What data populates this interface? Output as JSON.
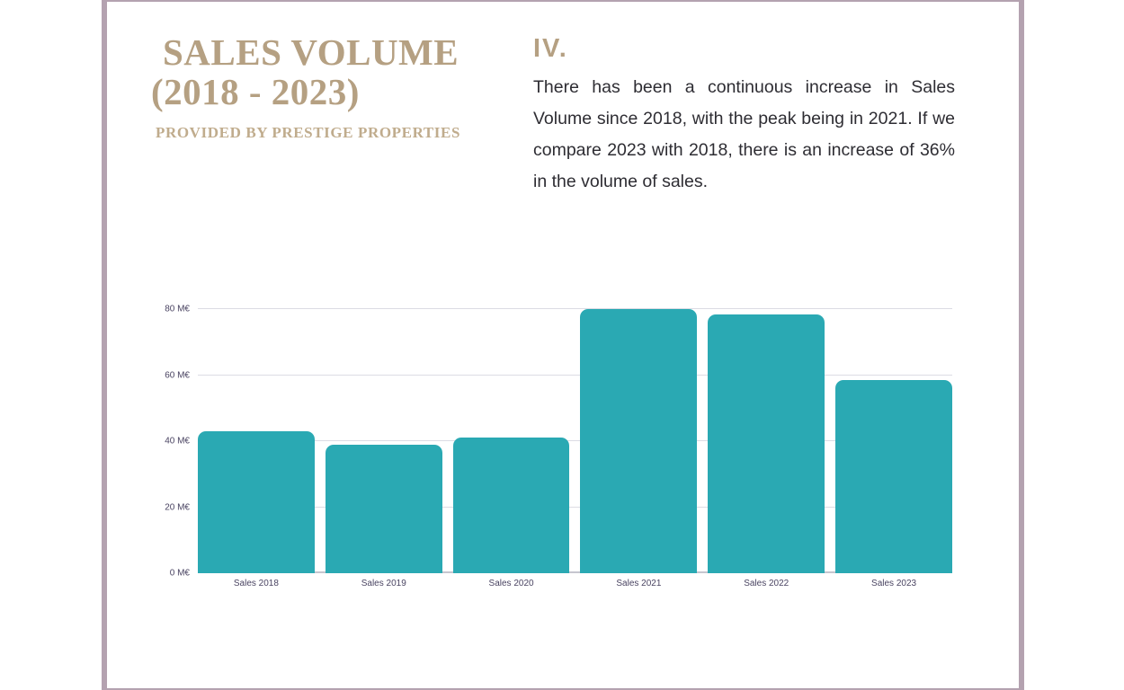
{
  "colors": {
    "accent_gold": "#b5a082",
    "subtitle_gold": "#c0ac8d",
    "bar_teal": "#2aa9b3",
    "frame_mauve": "#b4a2b0",
    "axis_label": "#4a4462",
    "body_text": "#2e2d33",
    "gridline": "#dcdce4"
  },
  "header": {
    "title_line1": "SALES VOLUME",
    "title_line2": "(2018 - 2023)",
    "subtitle": "PROVIDED BY PRESTIGE PROPERTIES"
  },
  "section": {
    "number": "IV.",
    "body_text": "There has been a continuous increase in Sales Volume since 2018, with the peak being in 2021. If we compare 2023 with 2018, there is an increase of 36% in the volume of sales."
  },
  "chart_data": {
    "type": "bar",
    "title": "",
    "xlabel": "",
    "ylabel": "",
    "categories": [
      "Sales 2018",
      "Sales 2019",
      "Sales 2020",
      "Sales 2021",
      "Sales 2022",
      "Sales 2023"
    ],
    "values": [
      43,
      39,
      41,
      80,
      78.5,
      58.5
    ],
    "unit": "M€",
    "ylim": [
      0,
      80
    ],
    "y_ticks": [
      {
        "value": 0,
        "label": "0 M€"
      },
      {
        "value": 20,
        "label": "20 M€"
      },
      {
        "value": 40,
        "label": "40 M€"
      },
      {
        "value": 60,
        "label": "60 M€"
      },
      {
        "value": 80,
        "label": "80 M€"
      }
    ],
    "grid": true,
    "legend": false,
    "bar_color": "#2aa9b3"
  }
}
